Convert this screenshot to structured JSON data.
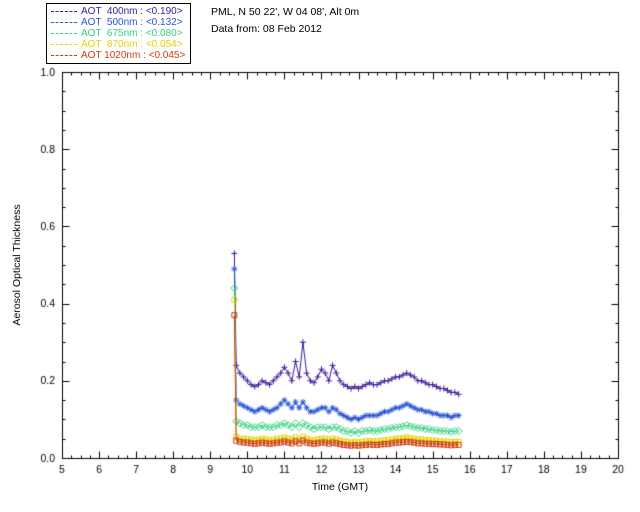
{
  "header": {
    "line1": "PML, N 50 22', W 04 08', Alt 0m",
    "line2": "Data from: 08 Feb 2012"
  },
  "chart_data": {
    "type": "line",
    "title": "",
    "station_info": "PML, N 50 22', W 04 08', Alt 0m",
    "date_info": "Data from: 08 Feb 2012",
    "xlabel": "Time (GMT)",
    "ylabel": "Aerosol Optical Thickness",
    "xlim": [
      5,
      20
    ],
    "ylim": [
      0,
      1
    ],
    "x_ticks": [
      5,
      6,
      7,
      8,
      9,
      10,
      11,
      12,
      13,
      14,
      15,
      16,
      17,
      18,
      19,
      20
    ],
    "y_ticks": [
      0.0,
      0.2,
      0.4,
      0.6,
      0.8,
      1.0
    ],
    "y_tick_labels": [
      "0.0",
      "0.2",
      "0.4",
      "0.6",
      "0.8",
      "1.0"
    ],
    "grid": false,
    "legend_position": "top-left-outside",
    "x": [
      9.65,
      9.7,
      9.8,
      9.9,
      10.0,
      10.1,
      10.2,
      10.3,
      10.4,
      10.5,
      10.6,
      10.7,
      10.8,
      10.9,
      11.0,
      11.1,
      11.2,
      11.3,
      11.4,
      11.5,
      11.6,
      11.7,
      11.8,
      11.9,
      12.0,
      12.1,
      12.2,
      12.3,
      12.4,
      12.5,
      12.6,
      12.7,
      12.8,
      12.9,
      13.0,
      13.1,
      13.2,
      13.3,
      13.4,
      13.5,
      13.6,
      13.7,
      13.8,
      13.9,
      14.0,
      14.1,
      14.2,
      14.3,
      14.4,
      14.5,
      14.6,
      14.7,
      14.8,
      14.9,
      15.0,
      15.1,
      15.2,
      15.3,
      15.4,
      15.5,
      15.6,
      15.7
    ],
    "series": [
      {
        "name": "AOT 400nm",
        "legend_label": "AOT  400nm : <0.190>",
        "mean": 0.19,
        "color": "#3d1a99",
        "marker": "plus",
        "values": [
          0.53,
          0.24,
          0.22,
          0.21,
          0.2,
          0.19,
          0.185,
          0.19,
          0.2,
          0.195,
          0.19,
          0.2,
          0.21,
          0.22,
          0.235,
          0.22,
          0.2,
          0.25,
          0.21,
          0.3,
          0.22,
          0.2,
          0.195,
          0.21,
          0.23,
          0.22,
          0.2,
          0.24,
          0.22,
          0.2,
          0.19,
          0.185,
          0.18,
          0.185,
          0.18,
          0.185,
          0.19,
          0.195,
          0.19,
          0.19,
          0.195,
          0.2,
          0.2,
          0.205,
          0.21,
          0.21,
          0.215,
          0.22,
          0.215,
          0.21,
          0.2,
          0.2,
          0.195,
          0.19,
          0.19,
          0.185,
          0.18,
          0.18,
          0.175,
          0.17,
          0.17,
          0.165
        ]
      },
      {
        "name": "AOT 500nm",
        "legend_label": "AOT  500nm : <0.132>",
        "mean": 0.132,
        "color": "#2953d6",
        "marker": "asterisk",
        "values": [
          0.49,
          0.15,
          0.14,
          0.135,
          0.13,
          0.125,
          0.12,
          0.125,
          0.13,
          0.125,
          0.12,
          0.125,
          0.13,
          0.14,
          0.15,
          0.14,
          0.13,
          0.145,
          0.13,
          0.145,
          0.13,
          0.12,
          0.12,
          0.125,
          0.13,
          0.13,
          0.12,
          0.13,
          0.125,
          0.115,
          0.11,
          0.105,
          0.1,
          0.105,
          0.1,
          0.105,
          0.11,
          0.11,
          0.11,
          0.11,
          0.115,
          0.12,
          0.12,
          0.125,
          0.13,
          0.13,
          0.135,
          0.14,
          0.135,
          0.13,
          0.125,
          0.125,
          0.12,
          0.12,
          0.115,
          0.115,
          0.11,
          0.11,
          0.11,
          0.105,
          0.11,
          0.11
        ]
      },
      {
        "name": "AOT 675nm",
        "legend_label": "AOT  675nm : <0.080>",
        "mean": 0.08,
        "color": "#35cf7f",
        "marker": "diamond",
        "values": [
          0.44,
          0.095,
          0.09,
          0.085,
          0.085,
          0.08,
          0.08,
          0.08,
          0.085,
          0.08,
          0.08,
          0.08,
          0.085,
          0.085,
          0.09,
          0.085,
          0.08,
          0.09,
          0.08,
          0.09,
          0.085,
          0.08,
          0.075,
          0.08,
          0.08,
          0.08,
          0.075,
          0.08,
          0.08,
          0.075,
          0.07,
          0.07,
          0.065,
          0.07,
          0.065,
          0.07,
          0.07,
          0.072,
          0.07,
          0.07,
          0.072,
          0.075,
          0.075,
          0.078,
          0.08,
          0.08,
          0.082,
          0.085,
          0.082,
          0.08,
          0.078,
          0.078,
          0.075,
          0.075,
          0.072,
          0.072,
          0.07,
          0.07,
          0.07,
          0.068,
          0.07,
          0.07
        ]
      },
      {
        "name": "AOT 870nm",
        "legend_label": "AOT  870nm : <0.054>",
        "mean": 0.054,
        "color": "#e3d400",
        "marker": "square",
        "values": [
          0.41,
          0.055,
          0.05,
          0.05,
          0.048,
          0.048,
          0.045,
          0.047,
          0.05,
          0.048,
          0.046,
          0.047,
          0.05,
          0.05,
          0.053,
          0.05,
          0.048,
          0.053,
          0.048,
          0.055,
          0.05,
          0.047,
          0.046,
          0.048,
          0.05,
          0.05,
          0.046,
          0.05,
          0.048,
          0.045,
          0.043,
          0.042,
          0.04,
          0.042,
          0.04,
          0.042,
          0.043,
          0.044,
          0.043,
          0.043,
          0.044,
          0.046,
          0.046,
          0.048,
          0.05,
          0.05,
          0.051,
          0.053,
          0.051,
          0.05,
          0.048,
          0.048,
          0.046,
          0.046,
          0.045,
          0.045,
          0.043,
          0.043,
          0.042,
          0.041,
          0.042,
          0.042
        ]
      },
      {
        "name": "AOT 1020nm",
        "legend_label": "AOT 1020nm : <0.045>",
        "mean": 0.045,
        "color": "#cc3a10",
        "marker": "square",
        "values": [
          0.37,
          0.045,
          0.042,
          0.04,
          0.04,
          0.038,
          0.037,
          0.038,
          0.04,
          0.038,
          0.037,
          0.038,
          0.04,
          0.04,
          0.043,
          0.04,
          0.038,
          0.043,
          0.038,
          0.045,
          0.04,
          0.038,
          0.037,
          0.038,
          0.04,
          0.04,
          0.037,
          0.04,
          0.038,
          0.036,
          0.034,
          0.033,
          0.032,
          0.033,
          0.032,
          0.033,
          0.034,
          0.035,
          0.034,
          0.034,
          0.035,
          0.036,
          0.036,
          0.038,
          0.04,
          0.04,
          0.041,
          0.042,
          0.041,
          0.04,
          0.038,
          0.038,
          0.037,
          0.037,
          0.036,
          0.036,
          0.035,
          0.035,
          0.034,
          0.033,
          0.034,
          0.034
        ]
      }
    ]
  }
}
